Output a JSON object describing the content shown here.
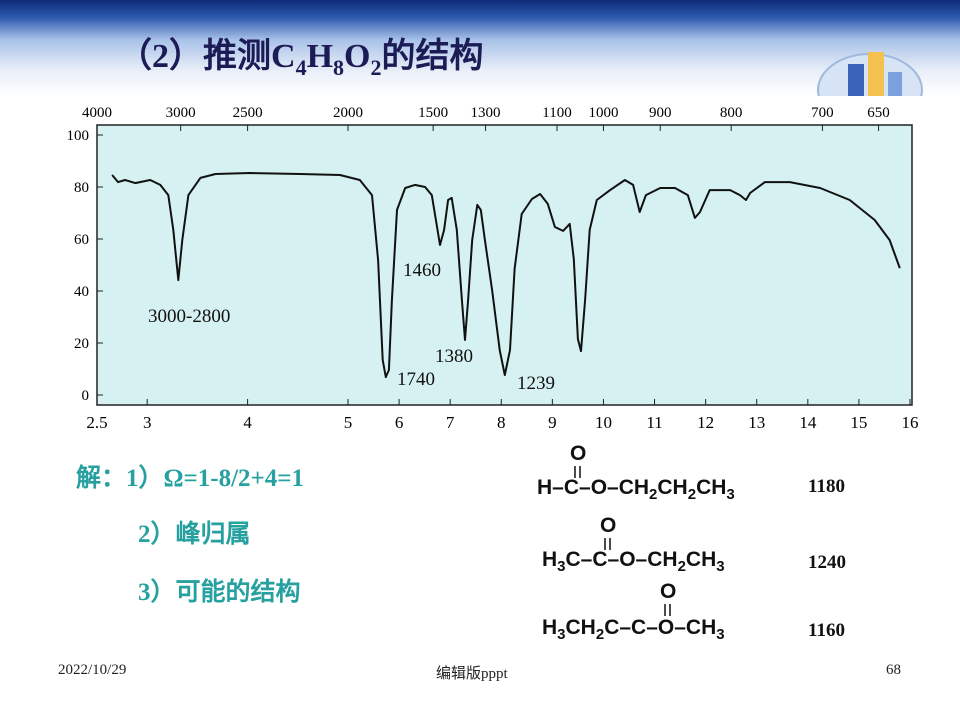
{
  "title": [
    "（2）推测C",
    "4",
    "H",
    "8",
    "O",
    "2",
    "的结构"
  ],
  "chart_data": {
    "type": "line",
    "x": [
      2.65,
      2.71,
      2.78,
      2.88,
      3.03,
      3.13,
      3.21,
      3.26,
      3.31,
      3.35,
      3.41,
      3.53,
      3.68,
      4.02,
      4.52,
      4.92,
      5.23,
      5.47,
      5.59,
      5.68,
      5.74,
      5.8,
      5.86,
      5.96,
      6.12,
      6.31,
      6.51,
      6.64,
      6.72,
      6.8,
      6.88,
      6.96,
      7.03,
      7.13,
      7.23,
      7.29,
      7.35,
      7.43,
      7.53,
      7.6,
      7.68,
      7.82,
      7.97,
      8.07,
      8.17,
      8.26,
      8.4,
      8.6,
      8.76,
      8.91,
      9.05,
      9.21,
      9.34,
      9.42,
      9.5,
      9.56,
      9.64,
      9.73,
      9.87,
      10.13,
      10.42,
      10.58,
      10.71,
      10.83,
      11.11,
      11.4,
      11.65,
      11.79,
      11.89,
      12.08,
      12.48,
      12.67,
      12.79,
      12.87,
      13.16,
      13.65,
      14.24,
      14.82,
      15.31,
      15.6,
      15.8
    ],
    "values": [
      84.6,
      81.9,
      82.7,
      81.5,
      82.7,
      80.8,
      76.9,
      63.5,
      44.2,
      59.6,
      76.9,
      83.5,
      85.0,
      85.4,
      85.0,
      84.6,
      82.7,
      76.9,
      51.9,
      13.5,
      6.9,
      9.6,
      36.5,
      71.2,
      79.6,
      80.8,
      80.0,
      76.9,
      67.3,
      57.7,
      63.5,
      75.0,
      75.8,
      63.5,
      36.5,
      21.2,
      36.5,
      59.6,
      73.1,
      71.2,
      59.6,
      40.4,
      17.3,
      7.7,
      17.3,
      48.5,
      69.6,
      75.4,
      77.3,
      73.5,
      64.6,
      63.1,
      65.8,
      52.3,
      21.5,
      16.9,
      36.5,
      63.5,
      75.0,
      78.8,
      82.7,
      80.8,
      70.4,
      76.9,
      79.6,
      79.6,
      76.9,
      68.1,
      70.4,
      78.8,
      78.8,
      76.9,
      75.0,
      77.7,
      81.9,
      81.9,
      79.6,
      75.0,
      67.3,
      59.6,
      48.8
    ],
    "color": "#111111",
    "xlim": [
      2.5,
      16
    ],
    "xticks": [
      2.5,
      3,
      4,
      5,
      6,
      7,
      8,
      9,
      10,
      11,
      12,
      13,
      14,
      15,
      16
    ],
    "x2ticks": [
      4000,
      3000,
      2500,
      2000,
      1500,
      1300,
      1100,
      1000,
      900,
      800,
      700,
      650
    ],
    "ylim": [
      0,
      100
    ],
    "yticks": [
      0,
      20,
      40,
      60,
      80,
      100
    ],
    "annotations": [
      "3000-2800",
      "1460",
      "1380",
      "1740",
      "1239"
    ]
  },
  "solution": [
    "解：1）Ω=1-8/2+4=1",
    "2）峰归属",
    "3）可能的结构"
  ],
  "structures": [
    {
      "carbonyl": "O",
      "formula": [
        "H–C–O–CH",
        "2",
        "CH",
        "2",
        "CH",
        "3"
      ],
      "number": 1180
    },
    {
      "carbonyl": "O",
      "formula": [
        "H",
        "3",
        "C–C–O–CH",
        "2",
        "CH",
        "3"
      ],
      "number": 1240
    },
    {
      "carbonyl": "O",
      "formula": [
        "H",
        "3",
        "CH",
        "2",
        "C–C–O–CH",
        "3"
      ],
      "number": 1160
    }
  ],
  "footer": {
    "date": "2022/10/29",
    "center": "编辑版pppt",
    "page": 68
  }
}
